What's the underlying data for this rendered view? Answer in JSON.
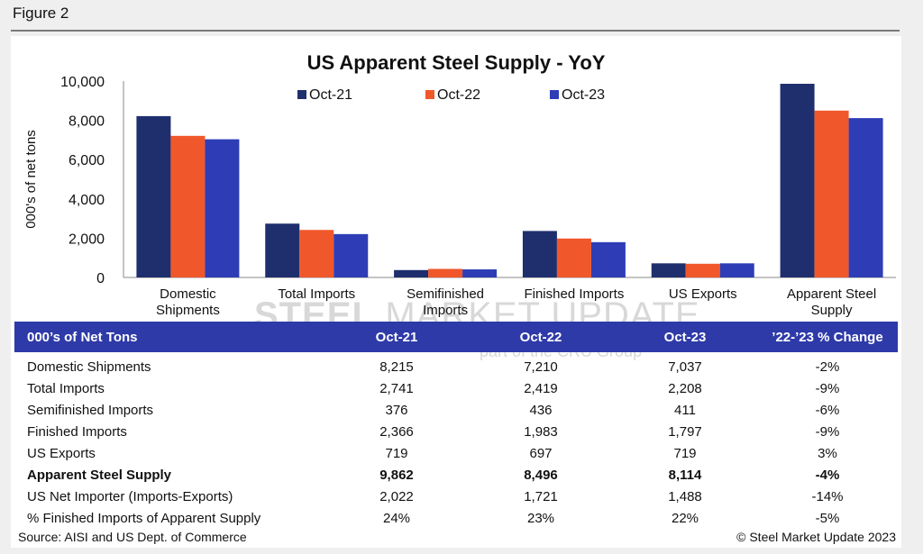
{
  "figure_label": "Figure 2",
  "colors": {
    "series": [
      "#1f2f6e",
      "#f0572a",
      "#2e3db5"
    ],
    "table_header": "#2e3aa8"
  },
  "watermark": {
    "brand": "STEEL",
    "brand_rest": "MARKET UPDATE",
    "sub": "part of the CRU Group"
  },
  "chart_data": {
    "type": "bar",
    "title": "US Apparent Steel Supply - YoY",
    "ylabel": "000's of net tons",
    "xlabel": "",
    "ylim": [
      0,
      10000
    ],
    "yticks": [
      0,
      2000,
      4000,
      6000,
      8000,
      10000
    ],
    "ytick_labels": [
      "0",
      "2,000",
      "4,000",
      "6,000",
      "8,000",
      "10,000"
    ],
    "categories": [
      [
        "Domestic",
        "Shipments"
      ],
      [
        "Total Imports"
      ],
      [
        "Semifinished",
        "Imports"
      ],
      [
        "Finished Imports"
      ],
      [
        "US Exports"
      ],
      [
        "Apparent Steel",
        "Supply"
      ]
    ],
    "series": [
      {
        "name": "Oct-21",
        "values": [
          8215,
          2741,
          376,
          2366,
          719,
          9862
        ]
      },
      {
        "name": "Oct-22",
        "values": [
          7210,
          2419,
          436,
          1983,
          697,
          8496
        ]
      },
      {
        "name": "Oct-23",
        "values": [
          7037,
          2208,
          411,
          1797,
          719,
          8114
        ]
      }
    ],
    "legend": "top-center",
    "grid": false
  },
  "table": {
    "headers": [
      "000’s of Net Tons",
      "Oct-21",
      "Oct-22",
      "Oct-23",
      "’22-’23 % Change"
    ],
    "rows": [
      {
        "label": "Domestic Shipments",
        "values": [
          "8,215",
          "7,210",
          "7,037",
          "-2%"
        ],
        "bold": false
      },
      {
        "label": "Total Imports",
        "values": [
          "2,741",
          "2,419",
          "2,208",
          "-9%"
        ],
        "bold": false
      },
      {
        "label": "Semifinished Imports",
        "values": [
          "376",
          "436",
          "411",
          "-6%"
        ],
        "bold": false
      },
      {
        "label": "Finished Imports",
        "values": [
          "2,366",
          "1,983",
          "1,797",
          "-9%"
        ],
        "bold": false
      },
      {
        "label": "US Exports",
        "values": [
          "719",
          "697",
          "719",
          "3%"
        ],
        "bold": false
      },
      {
        "label": "Apparent Steel Supply",
        "values": [
          "9,862",
          "8,496",
          "8,114",
          "-4%"
        ],
        "bold": true
      },
      {
        "label": "US Net Importer (Imports-Exports)",
        "values": [
          "2,022",
          "1,721",
          "1,488",
          "-14%"
        ],
        "bold": false
      },
      {
        "label": "% Finished Imports of Apparent Supply",
        "values": [
          "24%",
          "23%",
          "22%",
          "-5%"
        ],
        "bold": false
      }
    ]
  },
  "source": "Source: AISI and US Dept. of Commerce",
  "copyright": "© Steel Market Update 2023"
}
